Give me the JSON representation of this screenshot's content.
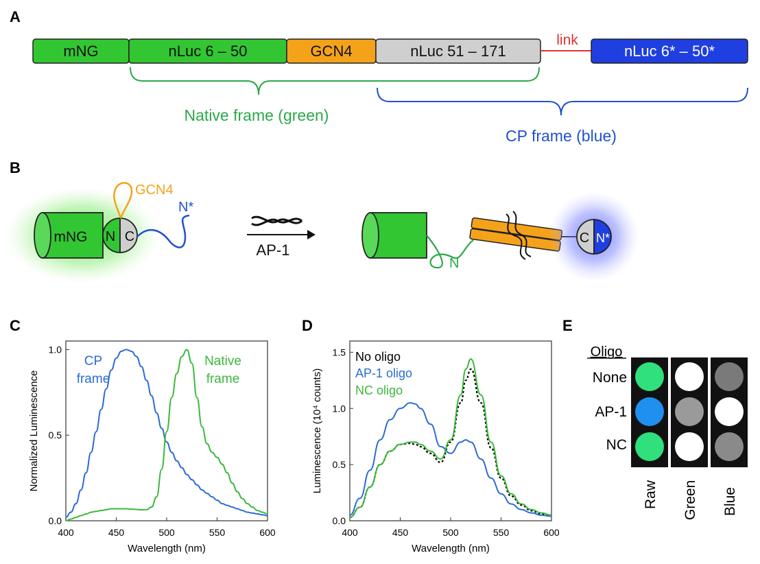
{
  "panels": {
    "a": "A",
    "b": "B",
    "c": "C",
    "d": "D",
    "e": "E"
  },
  "construct": {
    "segments": [
      {
        "label": "mNG",
        "color": "#33c633"
      },
      {
        "label": "nLuc 6 – 50",
        "color": "#33c633"
      },
      {
        "label": "GCN4",
        "color": "#f5a21b"
      },
      {
        "label": "nLuc 51 – 171",
        "color": "#cfcfcf"
      },
      {
        "label": "nLuc 6* – 50*",
        "color": "#1f3fe0"
      }
    ],
    "link_label": "link",
    "native_frame": "Native frame (green)",
    "cp_frame": "CP frame (blue)"
  },
  "schematic": {
    "gcn4": "GCN4",
    "n_star": "N*",
    "mng": "mNG",
    "n": "N",
    "c": "C",
    "ap1": "AP-1",
    "n_right": "N",
    "c_right": "C",
    "n_star_right": "N*"
  },
  "colors": {
    "green": "#2bb52b",
    "blue": "#2060d0",
    "orange": "#f5a21b",
    "red": "#e03030",
    "black": "#000000"
  },
  "chart_data": [
    {
      "type": "line",
      "xlabel": "Wavelength (nm)",
      "ylabel": "Normalized Luminescence",
      "xlim": [
        400,
        600
      ],
      "ylim": [
        0,
        1.05
      ],
      "xticks": [
        "400",
        "450",
        "500",
        "550",
        "600"
      ],
      "yticks": [
        "0.0",
        "0.5",
        "1.0"
      ],
      "annotations": {
        "cp_1": "CP",
        "cp_2": "frame",
        "native_1": "Native",
        "native_2": "frame"
      },
      "series": [
        {
          "name": "CP frame",
          "color": "#2a6bd6",
          "x": [
            400,
            405,
            410,
            415,
            420,
            425,
            430,
            435,
            440,
            445,
            450,
            455,
            460,
            465,
            470,
            475,
            480,
            485,
            490,
            495,
            500,
            505,
            510,
            515,
            520,
            525,
            530,
            535,
            540,
            545,
            550,
            555,
            560,
            565,
            570,
            575,
            580,
            585,
            590,
            595,
            600
          ],
          "y": [
            0.02,
            0.05,
            0.1,
            0.18,
            0.28,
            0.4,
            0.52,
            0.65,
            0.77,
            0.88,
            0.95,
            0.99,
            1.0,
            0.99,
            0.96,
            0.9,
            0.82,
            0.73,
            0.63,
            0.54,
            0.46,
            0.4,
            0.35,
            0.31,
            0.27,
            0.24,
            0.21,
            0.18,
            0.16,
            0.14,
            0.12,
            0.1,
            0.09,
            0.08,
            0.07,
            0.06,
            0.05,
            0.045,
            0.04,
            0.035,
            0.03
          ]
        },
        {
          "name": "Native frame",
          "color": "#3ab83a",
          "x": [
            400,
            405,
            410,
            415,
            420,
            425,
            430,
            435,
            440,
            445,
            450,
            455,
            460,
            465,
            470,
            475,
            480,
            485,
            490,
            495,
            500,
            505,
            510,
            515,
            520,
            525,
            530,
            535,
            540,
            545,
            550,
            555,
            560,
            565,
            570,
            575,
            580,
            585,
            590,
            595,
            600
          ],
          "y": [
            0.0,
            0.01,
            0.02,
            0.03,
            0.04,
            0.05,
            0.055,
            0.06,
            0.065,
            0.07,
            0.07,
            0.07,
            0.07,
            0.068,
            0.066,
            0.064,
            0.065,
            0.08,
            0.14,
            0.3,
            0.52,
            0.72,
            0.86,
            0.96,
            1.0,
            0.92,
            0.72,
            0.55,
            0.45,
            0.4,
            0.37,
            0.33,
            0.28,
            0.22,
            0.17,
            0.13,
            0.1,
            0.08,
            0.06,
            0.05,
            0.04
          ]
        }
      ]
    },
    {
      "type": "line",
      "xlabel": "Wavelength (nm)",
      "ylabel": "Luminescence (10⁴ counts)",
      "xlim": [
        400,
        600
      ],
      "ylim": [
        0,
        1.6
      ],
      "xticks": [
        "400",
        "450",
        "500",
        "550",
        "600"
      ],
      "yticks": [
        "0.0",
        "0.5",
        "1.0",
        "1.5"
      ],
      "legend": [
        "No oligo",
        "AP-1 oligo",
        "NC oligo"
      ],
      "legend_colors": [
        "#000000",
        "#2a6bd6",
        "#3ab83a"
      ],
      "series": [
        {
          "name": "No oligo",
          "color": "#000000",
          "dashed": true,
          "x": [
            400,
            410,
            420,
            430,
            440,
            450,
            460,
            465,
            470,
            480,
            490,
            500,
            510,
            515,
            520,
            530,
            540,
            550,
            560,
            570,
            580,
            590,
            600
          ],
          "y": [
            0.03,
            0.12,
            0.3,
            0.5,
            0.62,
            0.68,
            0.69,
            0.68,
            0.66,
            0.6,
            0.52,
            0.7,
            1.05,
            1.25,
            1.35,
            1.05,
            0.65,
            0.38,
            0.22,
            0.14,
            0.09,
            0.06,
            0.05
          ]
        },
        {
          "name": "AP-1 oligo",
          "color": "#2a6bd6",
          "x": [
            400,
            410,
            420,
            430,
            440,
            450,
            460,
            465,
            470,
            480,
            490,
            500,
            510,
            515,
            520,
            530,
            540,
            550,
            560,
            570,
            580,
            590,
            600
          ],
          "y": [
            0.05,
            0.2,
            0.45,
            0.72,
            0.9,
            1.0,
            1.05,
            1.04,
            1.0,
            0.86,
            0.66,
            0.6,
            0.7,
            0.72,
            0.7,
            0.55,
            0.38,
            0.24,
            0.15,
            0.1,
            0.07,
            0.05,
            0.04
          ]
        },
        {
          "name": "NC oligo",
          "color": "#3ab83a",
          "x": [
            400,
            410,
            420,
            430,
            440,
            450,
            460,
            465,
            470,
            480,
            490,
            500,
            510,
            515,
            520,
            530,
            540,
            550,
            560,
            570,
            580,
            590,
            600
          ],
          "y": [
            0.03,
            0.12,
            0.3,
            0.5,
            0.62,
            0.68,
            0.7,
            0.7,
            0.68,
            0.62,
            0.55,
            0.72,
            1.12,
            1.35,
            1.44,
            1.12,
            0.7,
            0.4,
            0.24,
            0.15,
            0.1,
            0.07,
            0.05
          ]
        }
      ]
    }
  ],
  "panel_e": {
    "header": "Oligo",
    "rows": [
      "None",
      "AP-1",
      "NC"
    ],
    "columns": [
      "Raw",
      "Green",
      "Blue"
    ],
    "cells": [
      [
        "#2fe07c",
        "#ffffff",
        "#7a7a7a"
      ],
      [
        "#1f8ff0",
        "#9a9a9a",
        "#ffffff"
      ],
      [
        "#2fe07c",
        "#ffffff",
        "#8a8a8a"
      ]
    ]
  }
}
